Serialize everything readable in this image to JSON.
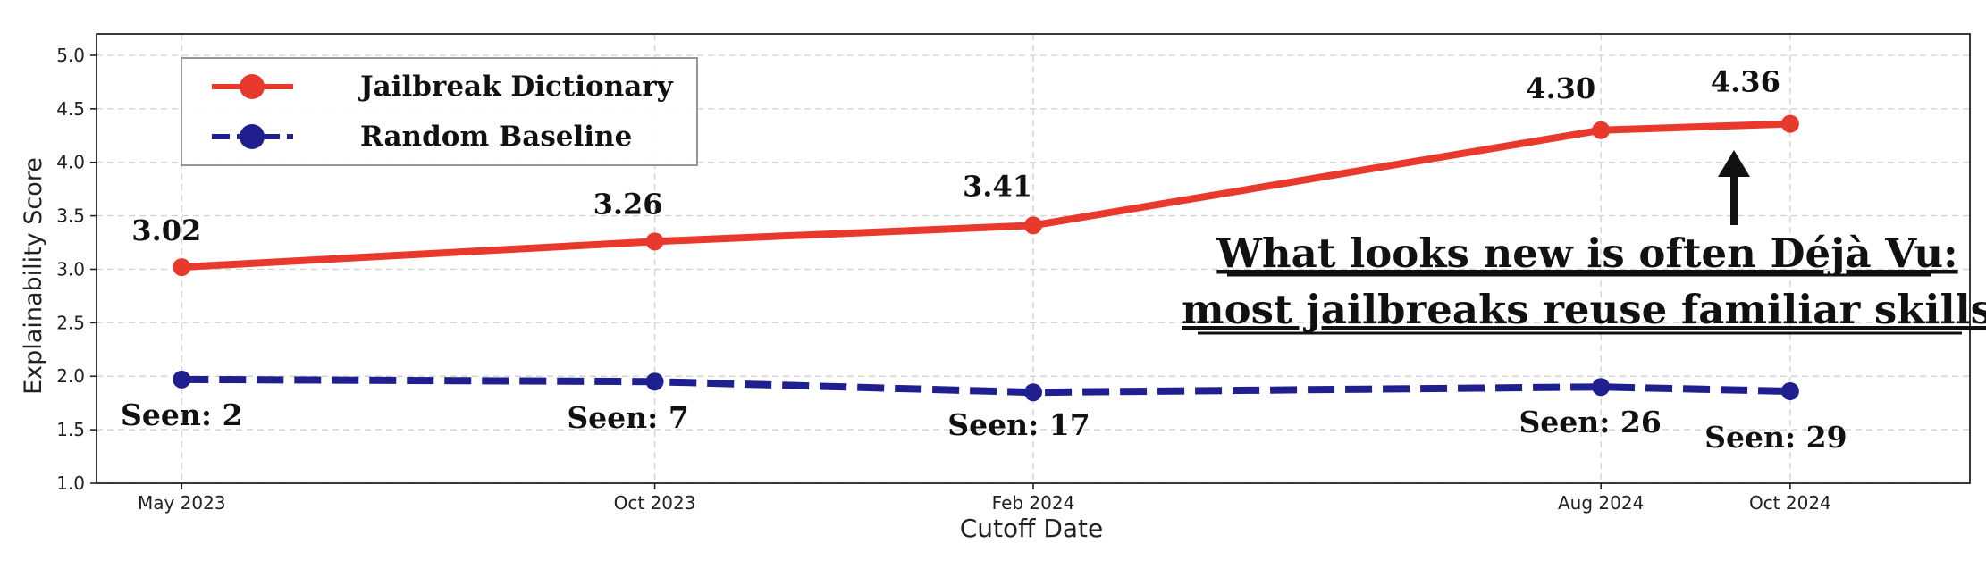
{
  "chart_data": {
    "type": "line",
    "title": "",
    "xlabel": "Cutoff Date",
    "ylabel": "Explainability Score",
    "x": [
      "May 2023",
      "Oct 2023",
      "Feb 2024",
      "Aug 2024",
      "Oct 2024"
    ],
    "x_months": [
      0,
      5,
      9,
      15,
      17
    ],
    "ylim": [
      1.0,
      5.2
    ],
    "yticks": [
      "1.0",
      "1.5",
      "2.0",
      "2.5",
      "3.0",
      "3.5",
      "4.0",
      "4.5",
      "5.0"
    ],
    "grid": true,
    "legend_position": "top-left",
    "series": [
      {
        "name": "Jailbreak Dictionary",
        "values": [
          3.02,
          3.26,
          3.41,
          4.3,
          4.36
        ],
        "labels": [
          "3.02",
          "3.26",
          "3.41",
          "4.30",
          "4.36"
        ],
        "color": "#e8392c",
        "style": "solid"
      },
      {
        "name": "Random Baseline",
        "values": [
          1.97,
          1.95,
          1.85,
          1.9,
          1.86
        ],
        "labels": [
          "Seen: 2",
          "Seen: 7",
          "Seen: 17",
          "Seen: 26",
          "Seen: 29"
        ],
        "color": "#1f1f8f",
        "style": "dashed"
      }
    ],
    "annotation": {
      "lines": [
        "What looks new is often Déjà Vu:",
        "most jailbreaks reuse familiar skills"
      ],
      "arrow_target": "Aug 2024"
    }
  }
}
